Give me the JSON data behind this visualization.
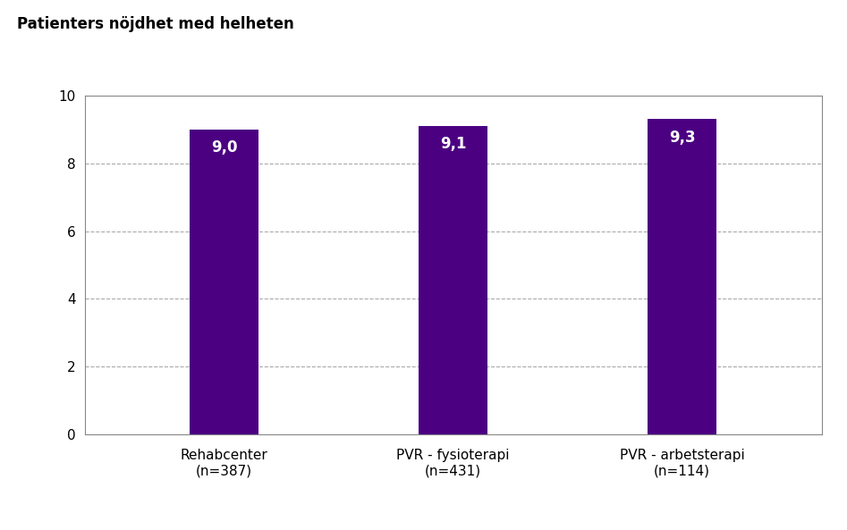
{
  "title": "Patienters nöjdhet med helheten",
  "categories": [
    "Rehabcenter\n(n=387)",
    "PVR - fysioterapi\n(n=431)",
    "PVR - arbetsterapi\n(n=114)"
  ],
  "values": [
    9.0,
    9.1,
    9.3
  ],
  "bar_color": "#4B0082",
  "label_color": "#FFFFFF",
  "ylim": [
    0,
    10
  ],
  "yticks": [
    0,
    2,
    4,
    6,
    8,
    10
  ],
  "grid_color": "#AAAAAA",
  "background_color": "#FFFFFF",
  "title_fontsize": 12,
  "tick_fontsize": 11,
  "bar_label_fontsize": 12,
  "bar_width": 0.3
}
